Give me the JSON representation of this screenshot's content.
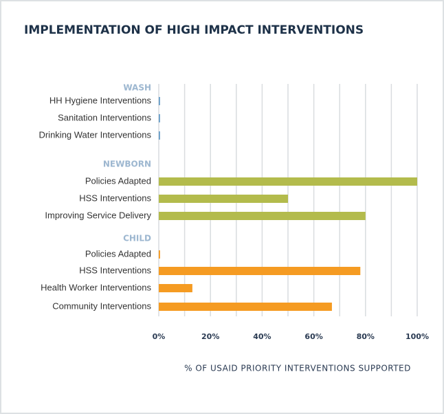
{
  "chart_data": {
    "type": "bar",
    "title": "IMPLEMENTATION OF HIGH IMPACT INTERVENTIONS",
    "x_label": "% OF USAID PRIORITY INTERVENTIONS SUPPORTED",
    "xlim": [
      0,
      100
    ],
    "xticks": [
      {
        "value": 0,
        "label": "0%"
      },
      {
        "value": 20,
        "label": "20%"
      },
      {
        "value": 40,
        "label": "40%"
      },
      {
        "value": 60,
        "label": "60%"
      },
      {
        "value": 80,
        "label": "80%"
      },
      {
        "value": 100,
        "label": "100%"
      }
    ],
    "xgrid_minor": [
      10,
      30,
      50,
      70,
      90
    ],
    "grid": true,
    "groups": [
      {
        "name": "WASH",
        "color": "#6a9fc8",
        "categories": [
          "HH Hygiene Interventions",
          "Sanitation Interventions",
          "Drinking Water Interventions"
        ],
        "values": [
          0.5,
          0.5,
          0.5
        ]
      },
      {
        "name": "NEWBORN",
        "color": "#b3bb4c",
        "categories": [
          "Policies Adapted",
          "HSS Interventions",
          "Improving Service Delivery"
        ],
        "values": [
          100,
          50,
          80
        ]
      },
      {
        "name": "CHILD",
        "color": "#f59b22",
        "categories": [
          "Policies Adapted",
          "HSS Interventions",
          "Health Worker Interventions",
          "Community Interventions"
        ],
        "values": [
          0.5,
          78,
          13,
          67
        ]
      }
    ]
  }
}
